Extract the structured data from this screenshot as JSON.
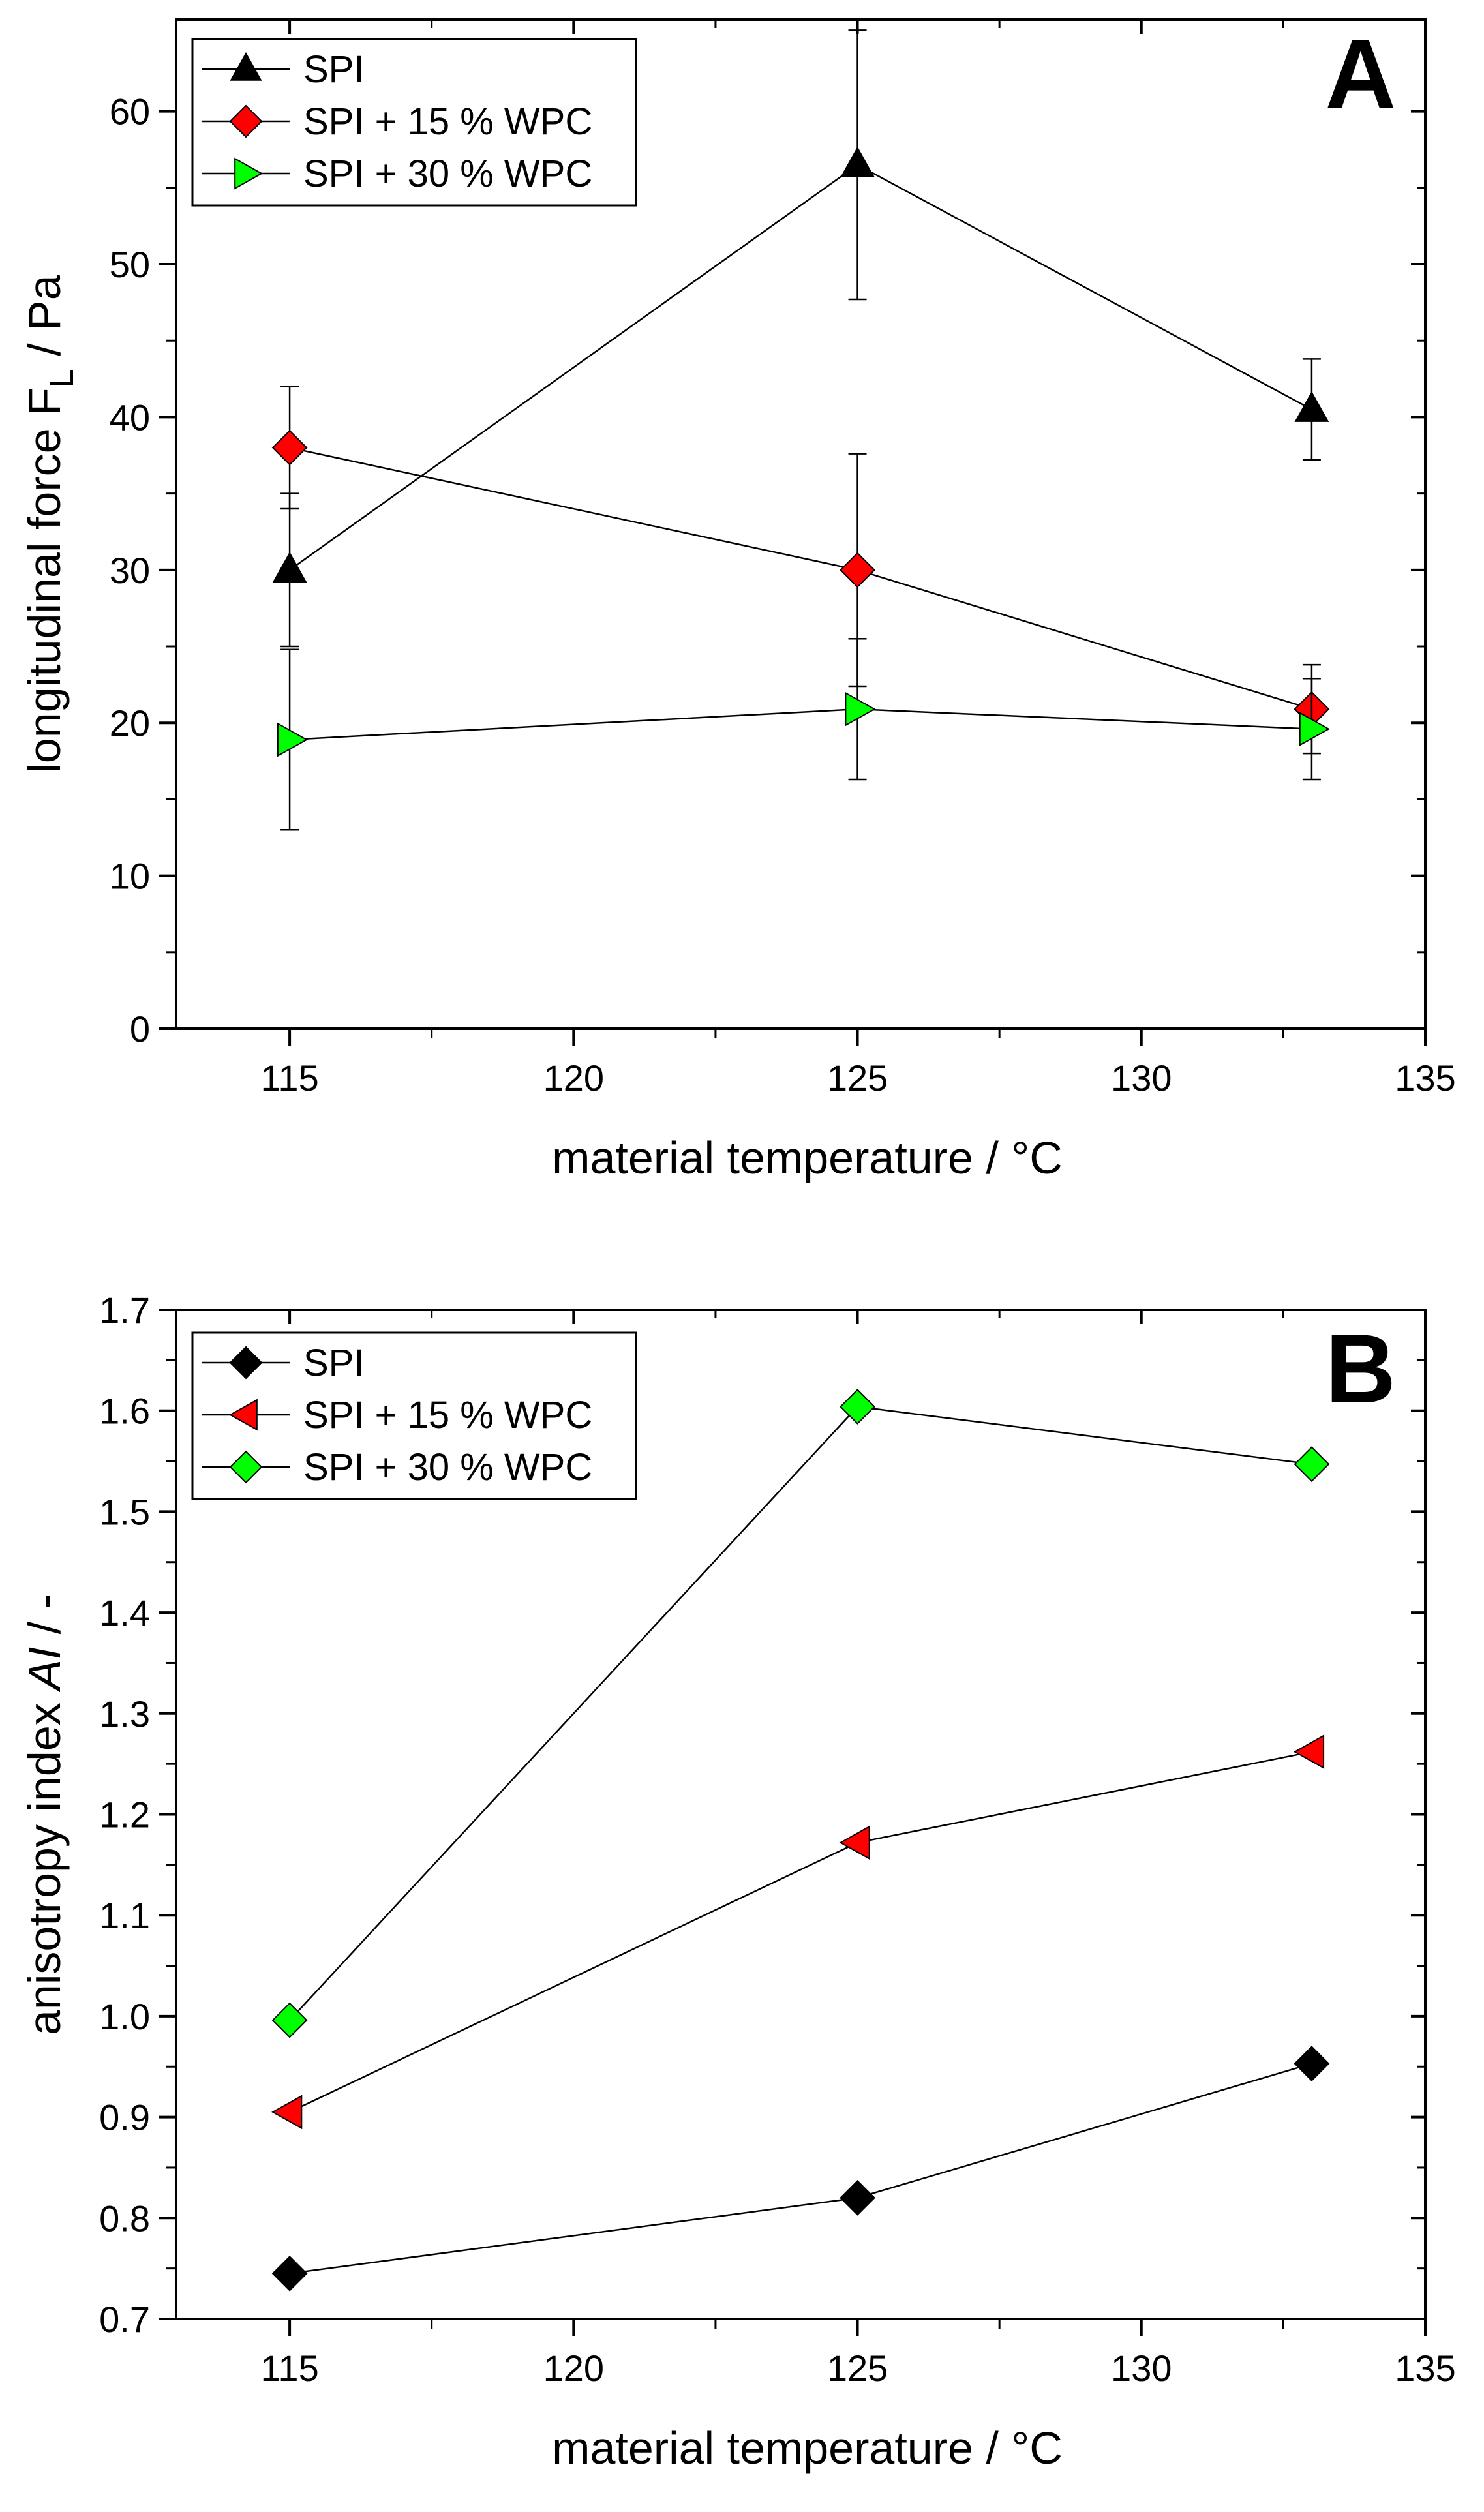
{
  "chart_data": [
    {
      "type": "line",
      "panel_label": "A",
      "xlabel": "material temperature / °C",
      "ylabel_main": "longitudinal force F",
      "ylabel_sub": "L",
      "ylabel_suffix": " / Pa",
      "xlim": [
        113,
        135
      ],
      "ylim": [
        0,
        66
      ],
      "xticks": [
        115,
        120,
        125,
        130,
        135
      ],
      "yticks": [
        0,
        10,
        20,
        30,
        40,
        50,
        60
      ],
      "x": [
        115,
        125,
        133
      ],
      "legend_position": "top-left",
      "series": [
        {
          "name": "SPI",
          "marker": "triangle-up",
          "color": "#000000",
          "values": [
            30,
            56.5,
            40.5
          ],
          "errors": [
            5,
            8.8,
            3.3
          ]
        },
        {
          "name": "SPI + 15 % WPC",
          "marker": "diamond",
          "color": "#ff0000",
          "values": [
            38,
            30,
            20.9
          ],
          "errors": [
            4,
            7.6,
            2.9
          ]
        },
        {
          "name": "SPI + 30 % WPC",
          "marker": "triangle-right",
          "color": "#00ff00",
          "values": [
            18.9,
            20.9,
            19.6
          ],
          "errors": [
            5.9,
            4.6,
            3.3
          ]
        }
      ]
    },
    {
      "type": "line",
      "panel_label": "B",
      "xlabel": "material temperature / °C",
      "ylabel_main": "anisotropy index ",
      "ylabel_italic": "AI",
      "ylabel_suffix": "  / -",
      "xlim": [
        113,
        135
      ],
      "ylim": [
        0.7,
        1.7
      ],
      "xticks": [
        115,
        120,
        125,
        130,
        135
      ],
      "yticks": [
        "0.7",
        "0.8",
        "0.9",
        "1.0",
        "1.1",
        "1.2",
        "1.3",
        "1.4",
        "1.5",
        "1.6",
        "1.7"
      ],
      "x": [
        115,
        125,
        133
      ],
      "legend_position": "top-left",
      "series": [
        {
          "name": "SPI",
          "marker": "diamond",
          "color": "#000000",
          "values": [
            0.745,
            0.82,
            0.953
          ]
        },
        {
          "name": "SPI + 15 % WPC",
          "marker": "triangle-left",
          "color": "#ff0000",
          "values": [
            0.905,
            1.172,
            1.262
          ]
        },
        {
          "name": "SPI + 30 % WPC",
          "marker": "diamond",
          "color": "#00ff00",
          "values": [
            0.996,
            1.604,
            1.547
          ]
        }
      ]
    }
  ]
}
